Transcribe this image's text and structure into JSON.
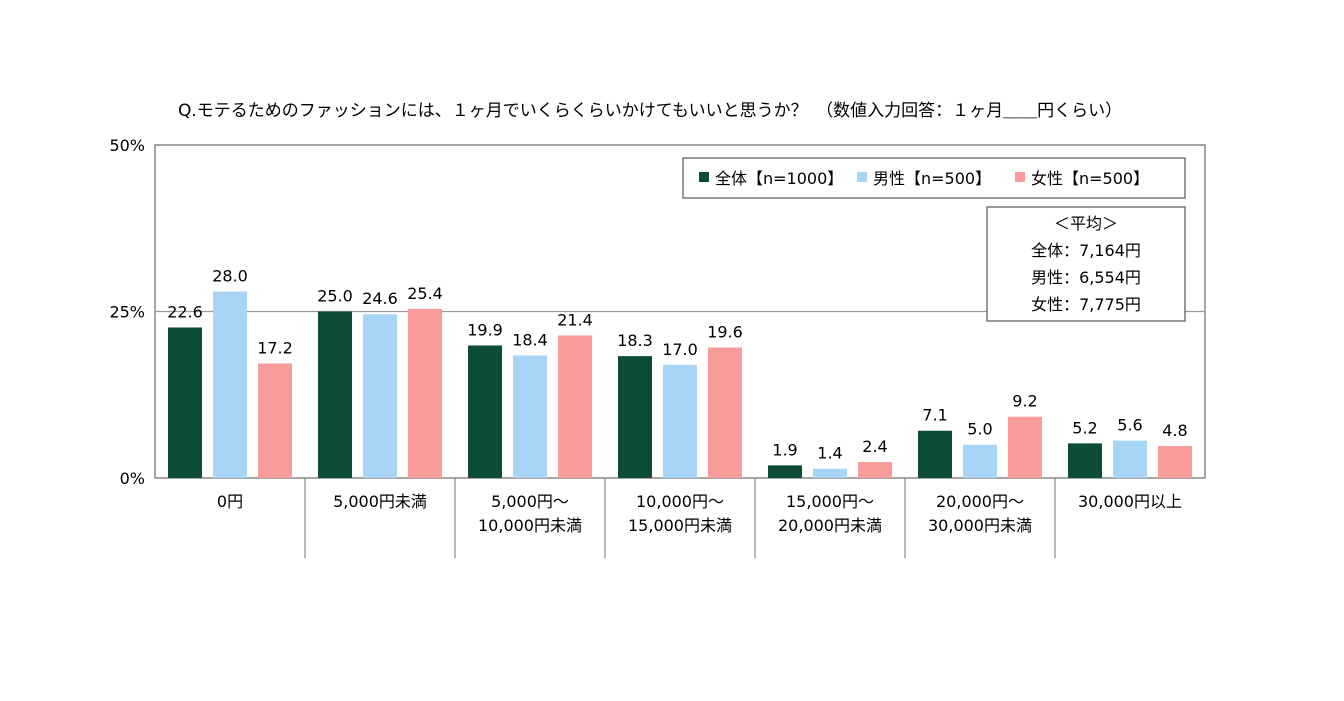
{
  "chart_data": {
    "type": "bar",
    "title": "Q.モテるためのファッションには、１ヶ月でいくらくらいかけてもいいと思うか？　（数値入力回答：１ヶ月＿＿円くらい）",
    "categories": [
      [
        "0円"
      ],
      [
        "5,000円未満"
      ],
      [
        "5,000円～",
        "10,000円未満"
      ],
      [
        "10,000円～",
        "15,000円未満"
      ],
      [
        "15,000円～",
        "20,000円未満"
      ],
      [
        "20,000円～",
        "30,000円未満"
      ],
      [
        "30,000円以上"
      ]
    ],
    "series": [
      {
        "name": "全体【n=1000】",
        "color": "#0e4d35",
        "values": [
          22.6,
          25.0,
          19.9,
          18.3,
          1.9,
          7.1,
          5.2
        ]
      },
      {
        "name": "男性【n=500】",
        "color": "#a8d4f6",
        "values": [
          28.0,
          24.6,
          18.4,
          17.0,
          1.4,
          5.0,
          5.6
        ]
      },
      {
        "name": "女性【n=500】",
        "color": "#f79c9b",
        "values": [
          17.2,
          25.4,
          21.4,
          19.6,
          2.4,
          9.2,
          4.8
        ]
      }
    ],
    "ylim": [
      0,
      50
    ],
    "yticks": [
      "0%",
      "25%",
      "50%"
    ],
    "legend_position": "top-right",
    "gridlines": true,
    "annotation": {
      "title": "＜平均＞",
      "lines": [
        "全体：7,164円",
        "男性：6,554円",
        "女性：7,775円"
      ]
    }
  }
}
